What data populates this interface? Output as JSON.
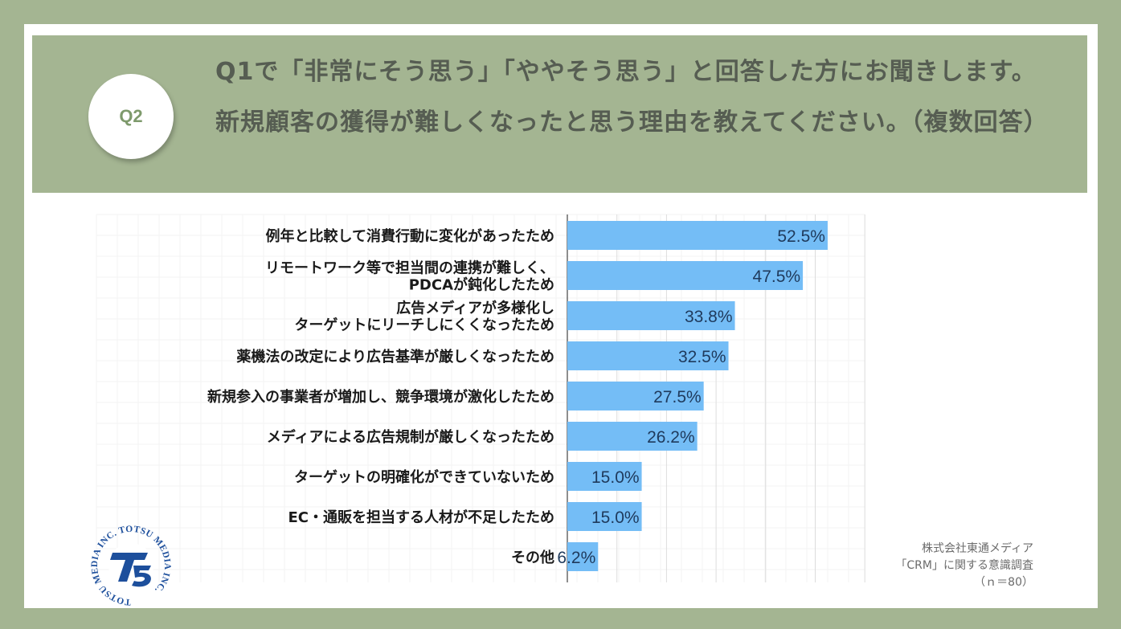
{
  "header": {
    "badge": "Q2",
    "question": "Q1で「非常にそう思う」「ややそう思う」と回答した方にお聞きします。新規顧客の獲得が難しくなったと思う理由を教えてください。（複数回答）"
  },
  "colors": {
    "background": "#a4b592",
    "bar": "#74bdf6",
    "badge_text": "#7e9a6c",
    "logo": "#1d4f9c"
  },
  "logo": {
    "ring_text": "TOTSU MEDIA INC. TOTSU MEDIA INC.",
    "mark": "T5"
  },
  "source": {
    "line1": "株式会社東通メディア",
    "line2": "「CRM」に関する意識調査",
    "line3": "（ｎ＝80）"
  },
  "chart_data": {
    "type": "bar",
    "orientation": "horizontal",
    "categories": [
      [
        "例年と比較して消費行動に変化があったため"
      ],
      [
        "リモートワーク等で担当間の連携が難しく、",
        "PDCAが鈍化したため"
      ],
      [
        "広告メディアが多様化し",
        "ターゲットにリーチしにくくなったため"
      ],
      [
        "薬機法の改定により広告基準が厳しくなったため"
      ],
      [
        "新規参入の事業者が増加し、競争環境が激化したため"
      ],
      [
        "メディアによる広告規制が厳しくなったため"
      ],
      [
        "ターゲットの明確化ができていないため"
      ],
      [
        "EC・通販を担当する人材が不足したため"
      ],
      [
        "その他"
      ]
    ],
    "values": [
      52.5,
      47.5,
      33.8,
      32.5,
      27.5,
      26.2,
      15.0,
      15.0,
      6.2
    ],
    "value_labels": [
      "52.5%",
      "47.5%",
      "33.8%",
      "32.5%",
      "27.5%",
      "26.2%",
      "15.0%",
      "15.0%",
      "6.2%"
    ],
    "xlim": [
      0,
      60
    ],
    "grid": true,
    "legend": "none"
  }
}
